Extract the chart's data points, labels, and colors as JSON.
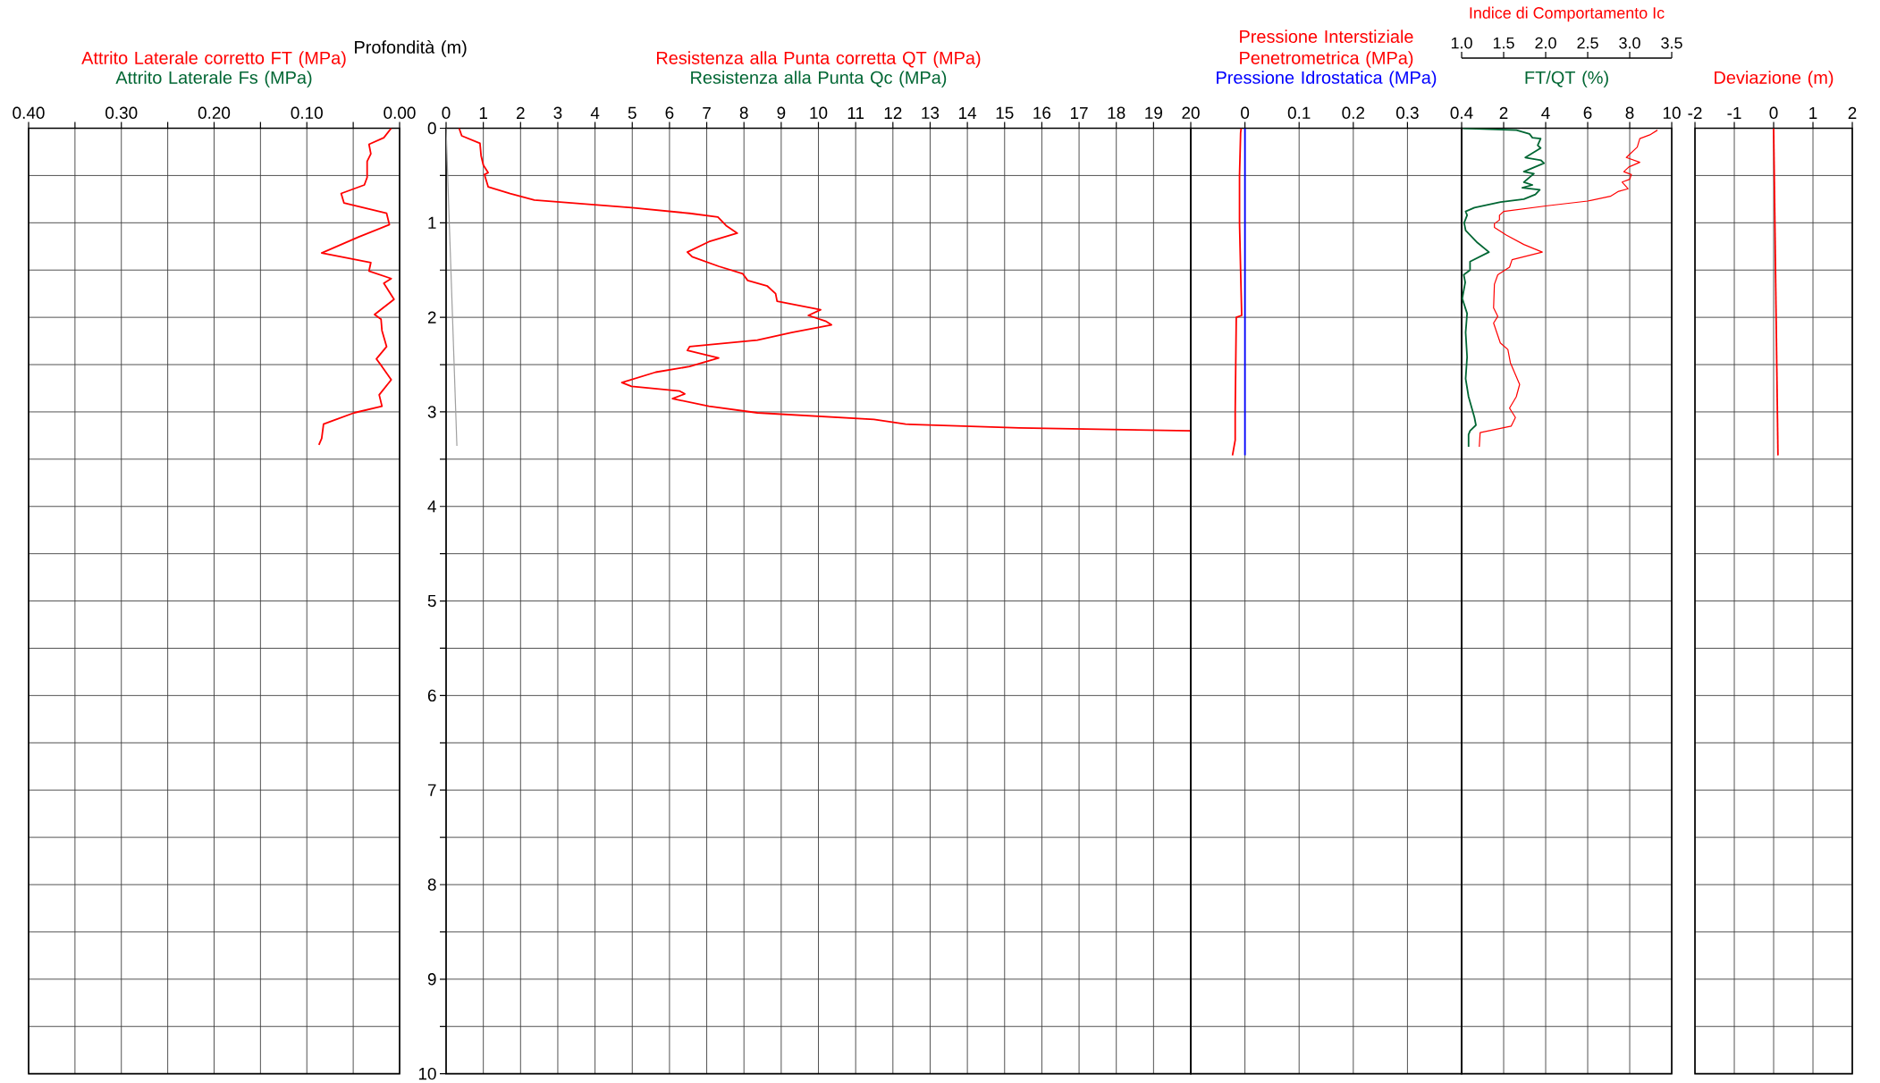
{
  "chart_data": [
    {
      "type": "line",
      "xlim": [
        0.4,
        0
      ],
      "ylim": [
        10,
        0
      ],
      "grid": true,
      "tick_labels": "x",
      "xticks": [
        {
          "value": 0.4,
          "label": "0.40"
        },
        {
          "value": 0.35,
          "label": null
        },
        {
          "value": 0.3,
          "label": "0.30"
        },
        {
          "value": 0.25,
          "label": null
        },
        {
          "value": 0.2,
          "label": "0.20"
        },
        {
          "value": 0.15,
          "label": null
        },
        {
          "value": 0.1,
          "label": "0.10"
        },
        {
          "value": 0.05,
          "label": null
        },
        {
          "value": 0,
          "label": "0.00"
        }
      ],
      "yticks": [
        0,
        {
          "value": 0.5,
          "label": null
        },
        1,
        {
          "value": 1.5,
          "label": null
        },
        2,
        {
          "value": 2.5,
          "label": null
        },
        3,
        {
          "value": 3.5,
          "label": null
        },
        4,
        {
          "value": 4.5,
          "label": null
        },
        5,
        {
          "value": 5.5,
          "label": null
        },
        6,
        {
          "value": 6.5,
          "label": null
        },
        7,
        {
          "value": 7.5,
          "label": null
        },
        8,
        {
          "value": 8.5,
          "label": null
        },
        9,
        {
          "value": 9.5,
          "label": null
        },
        10
      ],
      "annotations": [
        "Attrito Laterale Fs (MPa)"
      ],
      "series": [
        {
          "name": "Attrito Laterale corretto FT (MPa)",
          "color": "#ff0000",
          "x": [
            0.009,
            0.017,
            0.033,
            0.031,
            0.035,
            0.035,
            0.038,
            0.063,
            0.06,
            0.014,
            0.011,
            0.044,
            0.084,
            0.031,
            0.033,
            0.009,
            0.017,
            0.006,
            0.027,
            0.02,
            0.019,
            0.014,
            0.025,
            0.019,
            0.009,
            0.022,
            0.019,
            0.049,
            0.071,
            0.082,
            0.084,
            0.087
          ],
          "values": [
            0,
            0.1,
            0.17,
            0.27,
            0.35,
            0.52,
            0.6,
            0.69,
            0.79,
            0.9,
            1.02,
            1.15,
            1.32,
            1.42,
            1.51,
            1.59,
            1.64,
            1.81,
            1.97,
            2.02,
            2.14,
            2.31,
            2.44,
            2.52,
            2.66,
            2.82,
            2.94,
            3.01,
            3.09,
            3.13,
            3.28,
            3.35
          ]
        }
      ]
    },
    {
      "type": "line",
      "xlim": [
        0,
        20
      ],
      "ylim": [
        10,
        0
      ],
      "grid": true,
      "ylabel": "Profondità (m)",
      "xticks": [
        0,
        1,
        2,
        3,
        4,
        5,
        6,
        7,
        8,
        9,
        10,
        11,
        12,
        13,
        14,
        15,
        16,
        17,
        18,
        19,
        20
      ],
      "yticks": [
        0,
        {
          "value": 0.5,
          "label": null
        },
        1,
        {
          "value": 1.5,
          "label": null
        },
        2,
        {
          "value": 2.5,
          "label": null
        },
        3,
        {
          "value": 3.5,
          "label": null
        },
        4,
        {
          "value": 4.5,
          "label": null
        },
        5,
        {
          "value": 5.5,
          "label": null
        },
        6,
        {
          "value": 6.5,
          "label": null
        },
        7,
        {
          "value": 7.5,
          "label": null
        },
        8,
        {
          "value": 8.5,
          "label": null
        },
        9,
        {
          "value": 9.5,
          "label": null
        },
        10
      ],
      "annotations": [
        "Resistenza alla Punta Qc (MPa)"
      ],
      "series": [
        {
          "name": "Resistenza alla Punta corretta QT (MPa)",
          "color": "#ff0000",
          "x": [
            0.35,
            0.42,
            0.91,
            0.94,
            1.0,
            1.13,
            1.03,
            1.13,
            1.72,
            2.37,
            4.98,
            6.54,
            7.3,
            7.52,
            7.82,
            7.06,
            6.48,
            6.61,
            7.32,
            7.97,
            8.1,
            8.63,
            8.85,
            8.89,
            10.06,
            9.73,
            10.19,
            10.35,
            9.28,
            8.36,
            6.54,
            6.48,
            7.32,
            6.54,
            5.63,
            4.72,
            4.98,
            6.28,
            6.41,
            6.08,
            7.06,
            8.36,
            11.49,
            12.34,
            15.4,
            20
          ],
          "values": [
            0,
            0.08,
            0.16,
            0.29,
            0.39,
            0.47,
            0.49,
            0.62,
            0.69,
            0.76,
            0.84,
            0.9,
            0.94,
            1.03,
            1.11,
            1.2,
            1.31,
            1.36,
            1.46,
            1.54,
            1.61,
            1.67,
            1.75,
            1.83,
            1.92,
            1.98,
            2.04,
            2.08,
            2.16,
            2.24,
            2.31,
            2.35,
            2.43,
            2.52,
            2.58,
            2.69,
            2.73,
            2.78,
            2.81,
            2.86,
            2.94,
            3.01,
            3.08,
            3.13,
            3.17,
            3.2
          ]
        },
        {
          "color": "#a0a0a0",
          "x": [
            0,
            0.29
          ],
          "values": [
            0,
            3.36
          ]
        }
      ]
    },
    {
      "type": "line",
      "xlim": [
        -0.1,
        0.4
      ],
      "ylim": [
        10,
        0
      ],
      "grid": true,
      "tick_labels": "x",
      "xticks": [
        0,
        0.1,
        0.2,
        0.3,
        0.4
      ],
      "yticks": [
        0,
        {
          "value": 0.5,
          "label": null
        },
        1,
        {
          "value": 1.5,
          "label": null
        },
        2,
        {
          "value": 2.5,
          "label": null
        },
        3,
        {
          "value": 3.5,
          "label": null
        },
        4,
        {
          "value": 4.5,
          "label": null
        },
        5,
        {
          "value": 5.5,
          "label": null
        },
        6,
        {
          "value": 6.5,
          "label": null
        },
        7,
        {
          "value": 7.5,
          "label": null
        },
        8,
        {
          "value": 8.5,
          "label": null
        },
        9,
        {
          "value": 9.5,
          "label": null
        },
        10
      ],
      "series": [
        {
          "name": "Pressione Interstiziale Penetrometrica (MPa)",
          "color": "#ff0000",
          "x": [
            -0.007,
            -0.008,
            -0.01,
            -0.01,
            -0.008,
            -0.006,
            -0.016,
            -0.017,
            -0.018,
            -0.018,
            -0.023
          ],
          "values": [
            0,
            0.05,
            0.5,
            1.0,
            1.5,
            1.98,
            2.0,
            2.5,
            3.0,
            3.3,
            3.46
          ]
        },
        {
          "name": "Pressione Idrostatica (MPa)",
          "color": "#0000ff",
          "x": [
            0,
            0
          ],
          "values": [
            0,
            3.46
          ]
        }
      ]
    },
    {
      "type": "line",
      "xlim": [
        0,
        10
      ],
      "ylim": [
        10,
        0
      ],
      "grid": true,
      "tick_labels": "x",
      "xticks": [
        2,
        4,
        6,
        8,
        10
      ],
      "x2lim": [
        1,
        3.5
      ],
      "x2label": "Indice di Comportamento Ic",
      "x2ticks": [
        {
          "value": 1,
          "label": "1.0"
        },
        {
          "value": 1.5,
          "label": "1.5"
        },
        {
          "value": 2,
          "label": "2.0"
        },
        {
          "value": 2.5,
          "label": "2.5"
        },
        {
          "value": 3,
          "label": "3.0"
        },
        {
          "value": 3.5,
          "label": "3.5"
        }
      ],
      "yticks": [
        0,
        {
          "value": 0.5,
          "label": null
        },
        1,
        {
          "value": 1.5,
          "label": null
        },
        2,
        {
          "value": 2.5,
          "label": null
        },
        3,
        {
          "value": 3.5,
          "label": null
        },
        4,
        {
          "value": 4.5,
          "label": null
        },
        5,
        {
          "value": 5.5,
          "label": null
        },
        6,
        {
          "value": 6.5,
          "label": null
        },
        7,
        {
          "value": 7.5,
          "label": null
        },
        8,
        {
          "value": 8.5,
          "label": null
        },
        9,
        {
          "value": 9.5,
          "label": null
        },
        10
      ],
      "series": [
        {
          "name": "FT/QT (%)",
          "color": "#006633",
          "x": [
            0.06,
            2.61,
            3.23,
            3.37,
            3.76,
            3.62,
            3.76,
            3.03,
            3.78,
            3.92,
            2.96,
            3.44,
            2.96,
            3.37,
            2.89,
            3.72,
            3.51,
            2.96,
            1.85,
            0.61,
            0.19,
            0.26,
            0.12,
            0.19,
            0.75,
            1.3,
            0.4,
            0.4,
            0.1,
            0.17,
            0.03,
            0.26,
            0.19,
            0.26,
            0.19,
            0.33,
            0.61,
            0.68,
            0.4,
            0.33,
            0.33
          ],
          "values": [
            0,
            0.02,
            0.06,
            0.1,
            0.11,
            0.18,
            0.21,
            0.31,
            0.34,
            0.37,
            0.46,
            0.48,
            0.57,
            0.6,
            0.63,
            0.65,
            0.7,
            0.75,
            0.78,
            0.84,
            0.88,
            0.92,
            1.0,
            1.08,
            1.21,
            1.31,
            1.41,
            1.5,
            1.55,
            1.63,
            1.8,
            1.96,
            2.16,
            2.42,
            2.65,
            2.84,
            3.06,
            3.14,
            3.2,
            3.24,
            3.37
          ]
        },
        {
          "color": "#ff0000",
          "axis": "x2",
          "x": [
            3.33,
            3.24,
            3.12,
            3.09,
            2.96,
            3.12,
            2.99,
            2.93,
            3.02,
            3.0,
            2.91,
            2.98,
            2.86,
            2.77,
            2.5,
            2.02,
            1.5,
            1.45,
            1.45,
            1.39,
            1.39,
            1.53,
            1.74,
            1.96,
            1.6,
            1.57,
            1.43,
            1.39,
            1.38,
            1.43,
            1.38,
            1.46,
            1.55,
            1.58,
            1.69,
            1.65,
            1.57,
            1.64,
            1.59,
            1.22,
            1.21
          ],
          "values": [
            0.02,
            0.07,
            0.11,
            0.2,
            0.31,
            0.36,
            0.41,
            0.46,
            0.49,
            0.54,
            0.57,
            0.64,
            0.67,
            0.72,
            0.77,
            0.82,
            0.88,
            0.92,
            0.97,
            1.01,
            1.05,
            1.13,
            1.23,
            1.31,
            1.39,
            1.47,
            1.55,
            1.65,
            1.9,
            1.99,
            2.06,
            2.27,
            2.34,
            2.48,
            2.71,
            2.84,
            2.96,
            3.06,
            3.15,
            3.22,
            3.37
          ]
        }
      ]
    },
    {
      "type": "line",
      "xlim": [
        -2,
        2
      ],
      "ylim": [
        10,
        0
      ],
      "grid": true,
      "tick_labels": "x",
      "xticks": [
        -2,
        -1,
        0,
        1,
        2
      ],
      "yticks": [
        0,
        {
          "value": 0.5,
          "label": null
        },
        1,
        {
          "value": 1.5,
          "label": null
        },
        2,
        {
          "value": 2.5,
          "label": null
        },
        3,
        {
          "value": 3.5,
          "label": null
        },
        4,
        {
          "value": 4.5,
          "label": null
        },
        5,
        {
          "value": 5.5,
          "label": null
        },
        6,
        {
          "value": 6.5,
          "label": null
        },
        7,
        {
          "value": 7.5,
          "label": null
        },
        8,
        {
          "value": 8.5,
          "label": null
        },
        9,
        {
          "value": 9.5,
          "label": null
        },
        10
      ],
      "series": [
        {
          "name": "Deviazione (m)",
          "color": "#ff0000",
          "x": [
            0,
            0.11
          ],
          "values": [
            0,
            3.46
          ]
        }
      ]
    }
  ]
}
